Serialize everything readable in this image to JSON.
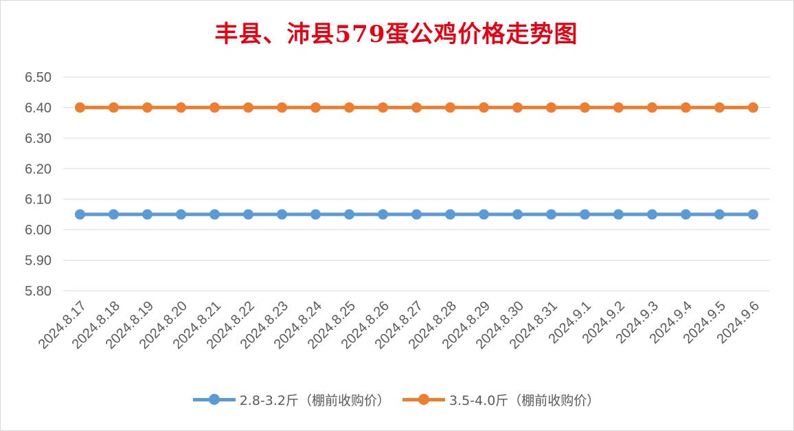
{
  "chart_data": {
    "type": "line",
    "title": "丰县、沛县579蛋公鸡价格走势图",
    "categories": [
      "2024.8.17",
      "2024.8.18",
      "2024.8.19",
      "2024.8.20",
      "2024.8.21",
      "2024.8.22",
      "2024.8.23",
      "2024.8.24",
      "2024.8.25",
      "2024.8.26",
      "2024.8.27",
      "2024.8.28",
      "2024.8.29",
      "2024.8.30",
      "2024.8.31",
      "2024.9.1",
      "2024.9.2",
      "2024.9.3",
      "2024.9.4",
      "2024.9.5",
      "2024.9.6"
    ],
    "series": [
      {
        "name": "2.8-3.2斤（棚前收购价）",
        "color": "#5b9bd5",
        "values": [
          6.05,
          6.05,
          6.05,
          6.05,
          6.05,
          6.05,
          6.05,
          6.05,
          6.05,
          6.05,
          6.05,
          6.05,
          6.05,
          6.05,
          6.05,
          6.05,
          6.05,
          6.05,
          6.05,
          6.05,
          6.05
        ]
      },
      {
        "name": "3.5-4.0斤（棚前收购价）",
        "color": "#ed7d31",
        "values": [
          6.4,
          6.4,
          6.4,
          6.4,
          6.4,
          6.4,
          6.4,
          6.4,
          6.4,
          6.4,
          6.4,
          6.4,
          6.4,
          6.4,
          6.4,
          6.4,
          6.4,
          6.4,
          6.4,
          6.4,
          6.4
        ]
      }
    ],
    "ylim": [
      5.8,
      6.5
    ],
    "yticks": [
      "6.50",
      "6.40",
      "6.30",
      "6.20",
      "6.10",
      "6.00",
      "5.90",
      "5.80"
    ],
    "grid": true,
    "legend_position": "bottom",
    "title_color": "#e60012"
  }
}
